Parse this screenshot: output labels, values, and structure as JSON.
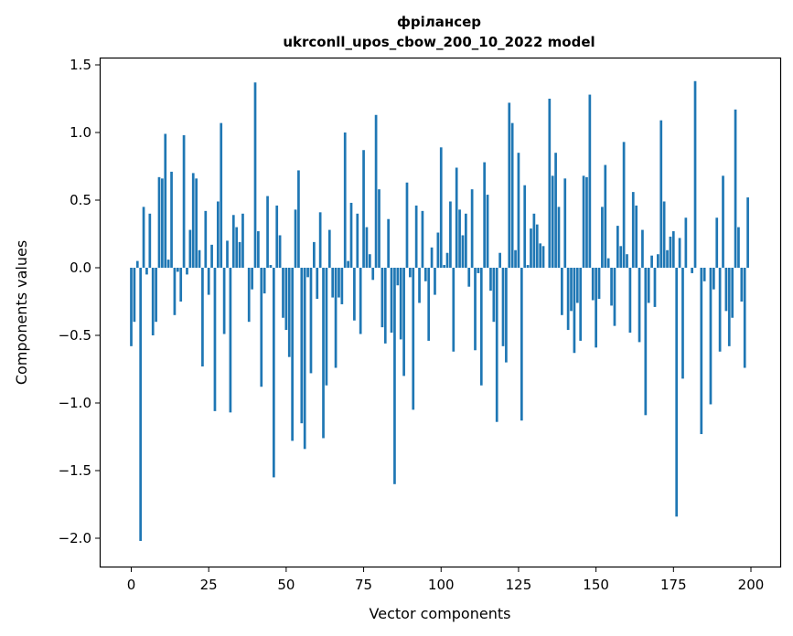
{
  "chart_data": {
    "type": "bar",
    "title": [
      "фрілансер",
      "ukrconll_upos_cbow_200_10_2022 model"
    ],
    "xlabel": "Vector components",
    "ylabel": "Components values",
    "xlim": [
      -10,
      210
    ],
    "ylim": [
      -2.2,
      1.55
    ],
    "xticks": [
      0,
      25,
      50,
      75,
      100,
      125,
      150,
      175,
      200
    ],
    "yticks": [
      1.5,
      1.0,
      0.5,
      0.0,
      -0.5,
      -1.0,
      -1.5,
      -2.0
    ],
    "ytick_labels": [
      "1.5",
      "1.0",
      "0.5",
      "0.0",
      "−0.5",
      "−1.0",
      "−1.5",
      "−2.0"
    ],
    "grid": false,
    "color": "#1f77b4",
    "values": [
      -0.58,
      -0.4,
      0.05,
      -2.02,
      0.45,
      -0.05,
      0.4,
      -0.5,
      -0.4,
      0.67,
      0.66,
      0.99,
      0.06,
      0.71,
      -0.35,
      -0.03,
      -0.25,
      0.98,
      -0.05,
      0.28,
      0.7,
      0.66,
      0.13,
      -0.73,
      0.42,
      -0.2,
      0.17,
      -1.06,
      0.49,
      1.07,
      -0.49,
      0.2,
      -1.07,
      0.39,
      0.3,
      0.19,
      0.4,
      0.0,
      -0.4,
      -0.16,
      1.37,
      0.27,
      -0.88,
      -0.19,
      0.53,
      0.02,
      -1.55,
      0.46,
      0.24,
      -0.37,
      -0.46,
      -0.66,
      -1.28,
      0.43,
      0.72,
      -1.15,
      -1.34,
      -0.07,
      -0.78,
      0.19,
      -0.23,
      0.41,
      -1.26,
      -0.87,
      0.28,
      -0.22,
      -0.74,
      -0.22,
      -0.27,
      1.0,
      0.05,
      0.48,
      -0.39,
      0.4,
      -0.49,
      0.87,
      0.3,
      0.1,
      -0.09,
      1.13,
      0.58,
      -0.44,
      -0.56,
      0.36,
      -0.48,
      -1.6,
      -0.13,
      -0.53,
      -0.8,
      0.63,
      -0.07,
      -1.05,
      0.46,
      -0.26,
      0.42,
      -0.1,
      -0.54,
      0.15,
      -0.2,
      0.26,
      0.89,
      0.02,
      0.11,
      0.49,
      -0.62,
      0.74,
      0.43,
      0.24,
      0.4,
      -0.14,
      0.58,
      -0.61,
      -0.04,
      -0.87,
      0.78,
      0.54,
      -0.17,
      -0.4,
      -1.14,
      0.11,
      -0.58,
      -0.7,
      1.22,
      1.07,
      0.13,
      0.85,
      -1.13,
      0.61,
      0.02,
      0.29,
      0.4,
      0.32,
      0.18,
      0.16,
      0.0,
      1.25,
      0.68,
      0.85,
      0.45,
      -0.35,
      0.66,
      -0.46,
      -0.32,
      -0.63,
      -0.26,
      -0.54,
      0.68,
      0.67,
      1.28,
      -0.24,
      -0.59,
      -0.23,
      0.45,
      0.76,
      0.07,
      -0.28,
      -0.43,
      0.31,
      0.16,
      0.93,
      0.1,
      -0.48,
      0.56,
      0.46,
      -0.55,
      0.28,
      -1.09,
      -0.26,
      0.09,
      -0.29,
      0.1,
      1.09,
      0.49,
      0.13,
      0.23,
      0.27,
      -1.84,
      0.22,
      -0.82,
      0.37,
      0.0,
      -0.04,
      1.38,
      0.0,
      -1.23,
      -0.1,
      0.0,
      -1.01,
      -0.16,
      0.37,
      -0.62,
      0.68,
      -0.32,
      -0.58,
      -0.37,
      1.17,
      0.3,
      -0.25,
      -0.74,
      0.52
    ]
  }
}
